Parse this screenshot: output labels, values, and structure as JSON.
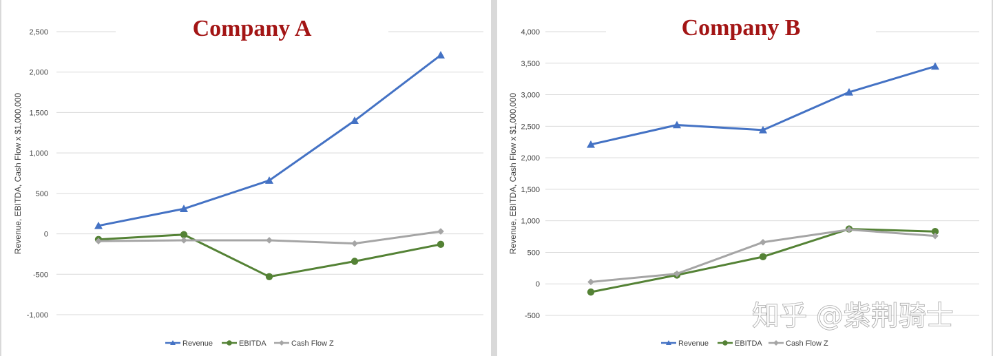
{
  "colors": {
    "Revenue": "#4472c4",
    "EBITDA": "#548235",
    "Cash Flow Z": "#a5a5a5",
    "title": "#a31515"
  },
  "watermark": "知乎 @紫荆骑士",
  "chart_data": [
    {
      "type": "line",
      "title": "Company A",
      "ylabel": "Revenue, EBITDA, Cash Flow  x $1,000,000",
      "xlabel": "",
      "ylim": [
        -1000,
        2500
      ],
      "yticks": [
        2500,
        2000,
        1500,
        1000,
        500,
        0,
        -500,
        -1000
      ],
      "ytick_labels": [
        "2,500",
        "2,000",
        "1,500",
        "1,000",
        "500",
        "0",
        "-500",
        "-1,000"
      ],
      "x": [
        1,
        2,
        3,
        4,
        5
      ],
      "grid": true,
      "legend": "bottom",
      "series": [
        {
          "name": "Revenue",
          "marker": "triangle",
          "values": [
            100,
            310,
            660,
            1400,
            2210
          ]
        },
        {
          "name": "EBITDA",
          "marker": "circle",
          "values": [
            -70,
            -10,
            -530,
            -340,
            -130
          ]
        },
        {
          "name": "Cash Flow Z",
          "marker": "diamond",
          "values": [
            -90,
            -80,
            -80,
            -120,
            30
          ]
        }
      ]
    },
    {
      "type": "line",
      "title": "Company B",
      "ylabel": "Revenue, EBITDA, Cash Flow  x $1,000,000",
      "xlabel": "",
      "ylim": [
        -500,
        4000
      ],
      "yticks": [
        4000,
        3500,
        3000,
        2500,
        2000,
        1500,
        1000,
        500,
        0,
        -500
      ],
      "ytick_labels": [
        "4,000",
        "3,500",
        "3,000",
        "2,500",
        "2,000",
        "1,500",
        "1,000",
        "500",
        "0",
        "-500"
      ],
      "x": [
        1,
        2,
        3,
        4,
        5
      ],
      "grid": true,
      "legend": "bottom",
      "series": [
        {
          "name": "Revenue",
          "marker": "triangle",
          "values": [
            2210,
            2520,
            2440,
            3040,
            3450
          ]
        },
        {
          "name": "EBITDA",
          "marker": "circle",
          "values": [
            -130,
            140,
            430,
            870,
            830
          ]
        },
        {
          "name": "Cash Flow Z",
          "marker": "diamond",
          "values": [
            30,
            160,
            660,
            860,
            760
          ]
        }
      ]
    }
  ]
}
